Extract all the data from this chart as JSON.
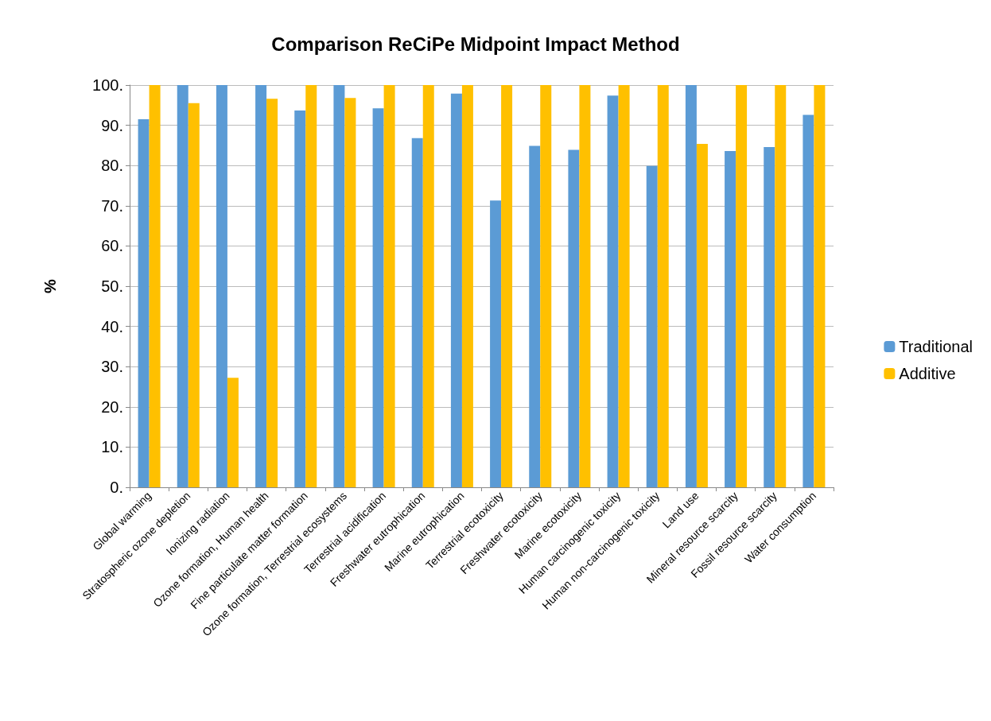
{
  "chart_data": {
    "type": "bar",
    "title": "Comparison ReCiPe Midpoint Impact Method",
    "ylabel": "%",
    "categories": [
      "Global warming",
      "Stratospheric ozone depletion",
      "Ionizing radiation",
      "Ozone formation, Human health",
      "Fine particulate matter formation",
      "Ozone formation, Terrestrial ecosystems",
      "Terrestrial acidification",
      "Freshwater eutrophication",
      "Marine eutrophication",
      "Terrestrial ecotoxicity",
      "Freshwater ecotoxicity",
      "Marine ecotoxicity",
      "Human carcinogenic toxicity",
      "Human non-carcinogenic toxicity",
      "Land use",
      "Mineral resource scarcity",
      "Fossil resource scarcity",
      "Water consumption"
    ],
    "series": [
      {
        "name": "Traditional",
        "color": "#5b9bd5",
        "values": [
          91.5,
          100,
          100,
          100,
          93.7,
          100,
          94.2,
          86.8,
          97.9,
          71.3,
          84.9,
          83.9,
          97.4,
          79.9,
          100,
          83.6,
          84.6,
          92.6
        ]
      },
      {
        "name": "Additive",
        "color": "#ffc000",
        "values": [
          100,
          95.5,
          27.2,
          96.6,
          100,
          96.8,
          100,
          100,
          100,
          100,
          100,
          100,
          100,
          100,
          85.4,
          100,
          100,
          100
        ]
      }
    ],
    "ylim": [
      0,
      100
    ],
    "yticks": [
      {
        "value": 0,
        "label": "0."
      },
      {
        "value": 10,
        "label": "10."
      },
      {
        "value": 20,
        "label": "20."
      },
      {
        "value": 30,
        "label": "30."
      },
      {
        "value": 40,
        "label": "40."
      },
      {
        "value": 50,
        "label": "50."
      },
      {
        "value": 60,
        "label": "60."
      },
      {
        "value": 70,
        "label": "70."
      },
      {
        "value": 80,
        "label": "80."
      },
      {
        "value": 90,
        "label": "90."
      },
      {
        "value": 100,
        "label": "100."
      }
    ],
    "grid": "y",
    "legend": "right"
  }
}
